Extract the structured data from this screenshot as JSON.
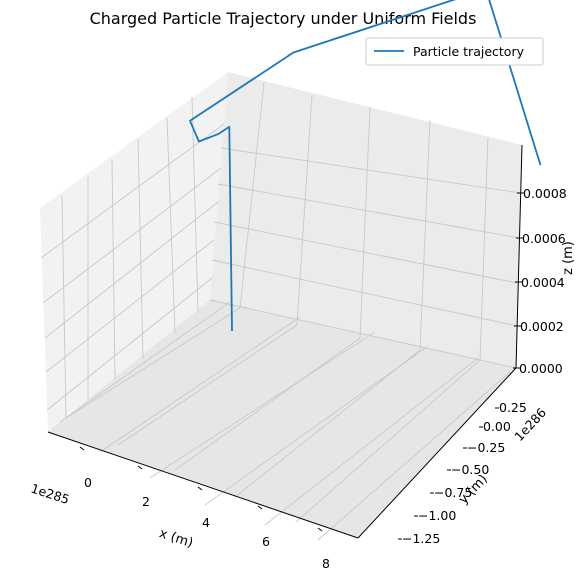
{
  "chart_data": {
    "type": "line3d",
    "title": "Charged Particle Trajectory under Uniform Fields",
    "xlabel": "x (m)",
    "ylabel": "y (m)",
    "zlabel": "z (m)",
    "x_offset": "1e285",
    "y_offset": "1e286",
    "x_ticks": [
      "0",
      "2",
      "4",
      "6",
      "8"
    ],
    "y_ticks": [
      "0.25",
      "0.00",
      "−0.25",
      "−0.50",
      "−0.75",
      "−1.00",
      "−1.25"
    ],
    "z_ticks": [
      "0.0000",
      "0.0002",
      "0.0004",
      "0.0006",
      "0.0008"
    ],
    "grid": true,
    "legend_position": "top-right",
    "series": [
      {
        "name": "Particle trajectory",
        "color": "#1f77b4",
        "points": [
          {
            "x": -0.7,
            "y": 0.0,
            "z": 0.0002
          },
          {
            "x": -0.8,
            "y": 0.0,
            "z": 0.00095
          },
          {
            "x": -1.2,
            "y": 0.0,
            "z": 0.00095
          },
          {
            "x": -1.8,
            "y": 0.05,
            "z": 0.00095
          },
          {
            "x": -1.4,
            "y": 0.3,
            "z": 0.00095
          },
          {
            "x": 2.5,
            "y": 0.3,
            "z": 0.00095
          },
          {
            "x": 8.0,
            "y": -0.3,
            "z": 0.00095
          },
          {
            "x": 8.0,
            "y": -1.0,
            "z": 0.00045
          }
        ]
      }
    ]
  }
}
